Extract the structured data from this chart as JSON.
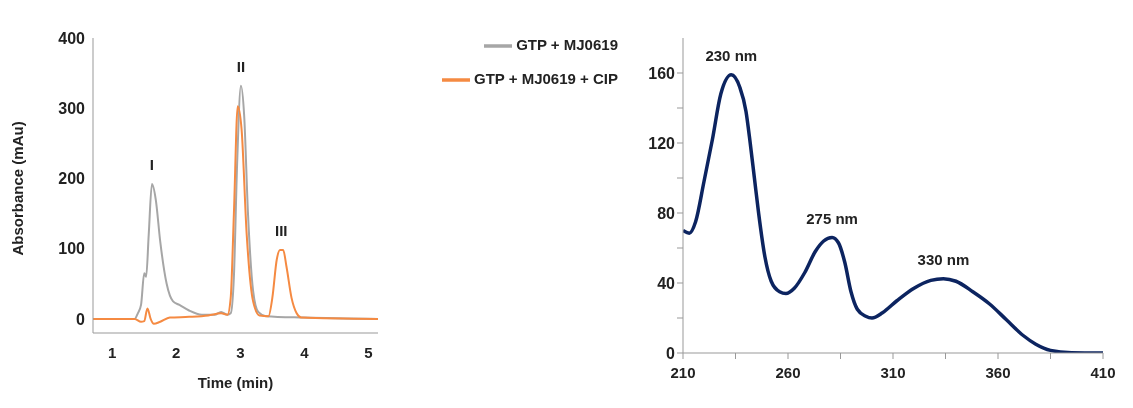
{
  "chart_data": [
    {
      "type": "line",
      "xlabel": "Time (min)",
      "ylabel": "Absorbance (mAu)",
      "xlim": [
        0.7,
        5.15
      ],
      "xticks": [
        1,
        2,
        3,
        4,
        5
      ],
      "ylim": [
        -20,
        400
      ],
      "yticks": [
        0,
        100,
        200,
        300,
        400
      ],
      "legend": "top right",
      "marker": "none",
      "series": [
        {
          "name": "GTP + MJ0619",
          "color": "#a6a6a6",
          "x": [
            0.7,
            1.35,
            1.4,
            1.45,
            1.5,
            1.53,
            1.57,
            1.62,
            1.68,
            1.75,
            1.85,
            1.95,
            2.05,
            2.2,
            2.4,
            2.6,
            2.7,
            2.8,
            2.85,
            2.9,
            2.95,
            3.01,
            3.06,
            3.12,
            3.2,
            3.28,
            3.4,
            4.0,
            5.15
          ],
          "values": [
            0,
            0,
            8,
            20,
            65,
            60,
            120,
            192,
            170,
            110,
            50,
            25,
            20,
            12,
            6,
            6,
            10,
            6,
            8,
            60,
            220,
            332,
            290,
            150,
            40,
            10,
            4,
            2,
            0
          ]
        },
        {
          "name": "GTP + MJ0619 + CIP",
          "color": "#f58a42",
          "x": [
            0.7,
            1.35,
            1.45,
            1.5,
            1.55,
            1.6,
            1.65,
            1.75,
            1.9,
            2.2,
            2.5,
            2.7,
            2.8,
            2.85,
            2.9,
            2.96,
            3.02,
            3.1,
            3.2,
            3.3,
            3.44,
            3.5,
            3.57,
            3.62,
            3.67,
            3.72,
            3.8,
            3.88,
            3.95,
            5.15
          ],
          "values": [
            0,
            0,
            -4,
            -3,
            15,
            0,
            -7,
            -4,
            2,
            3,
            5,
            8,
            6,
            30,
            150,
            303,
            270,
            120,
            25,
            5,
            4,
            30,
            85,
            98,
            98,
            75,
            30,
            8,
            2,
            0
          ]
        }
      ],
      "annotations": [
        {
          "text": "I",
          "x": 1.62,
          "y": 192
        },
        {
          "text": "II",
          "x": 3.01,
          "y": 332
        },
        {
          "text": "III",
          "x": 3.64,
          "y": 98
        }
      ]
    },
    {
      "type": "line",
      "xlim": [
        210,
        410
      ],
      "xticks": [
        210,
        {
          "value": 235,
          "label": null
        },
        260,
        {
          "value": 285,
          "label": null
        },
        310,
        {
          "value": 335,
          "label": null
        },
        360,
        {
          "value": 385,
          "label": null
        },
        410
      ],
      "ylim": [
        0,
        180
      ],
      "yticks": [
        0,
        {
          "value": 20,
          "label": null
        },
        40,
        {
          "value": 60,
          "label": null
        },
        80,
        {
          "value": 100,
          "label": null
        },
        120,
        {
          "value": 140,
          "label": null
        },
        160
      ],
      "marker": "none",
      "series": [
        {
          "color": "#0c2460",
          "x": [
            210,
            213,
            216,
            220,
            224,
            228,
            233,
            237,
            240,
            242,
            244,
            246,
            249,
            252,
            256,
            259,
            263,
            268,
            273,
            277,
            281,
            284,
            287,
            290,
            293,
            297,
            300,
            305,
            312,
            320,
            328,
            334,
            340,
            348,
            356,
            364,
            372,
            378,
            385,
            395,
            410
          ],
          "values": [
            70,
            68.5,
            75,
            98,
            122,
            148,
            159,
            152,
            138,
            120,
            100,
            80,
            55,
            41,
            35,
            34,
            37,
            46,
            58,
            64,
            66,
            63,
            52,
            35,
            25,
            21,
            20,
            23,
            30,
            37,
            41.5,
            42.5,
            41,
            35,
            28,
            19,
            10,
            5,
            1.5,
            0.2,
            0
          ]
        }
      ],
      "annotations": [
        {
          "text": "230 nm",
          "x": 233,
          "y": 159
        },
        {
          "text": "275 nm",
          "x": 281,
          "y": 66
        },
        {
          "text": "330 nm",
          "x": 334,
          "y": 42.5
        }
      ]
    }
  ]
}
